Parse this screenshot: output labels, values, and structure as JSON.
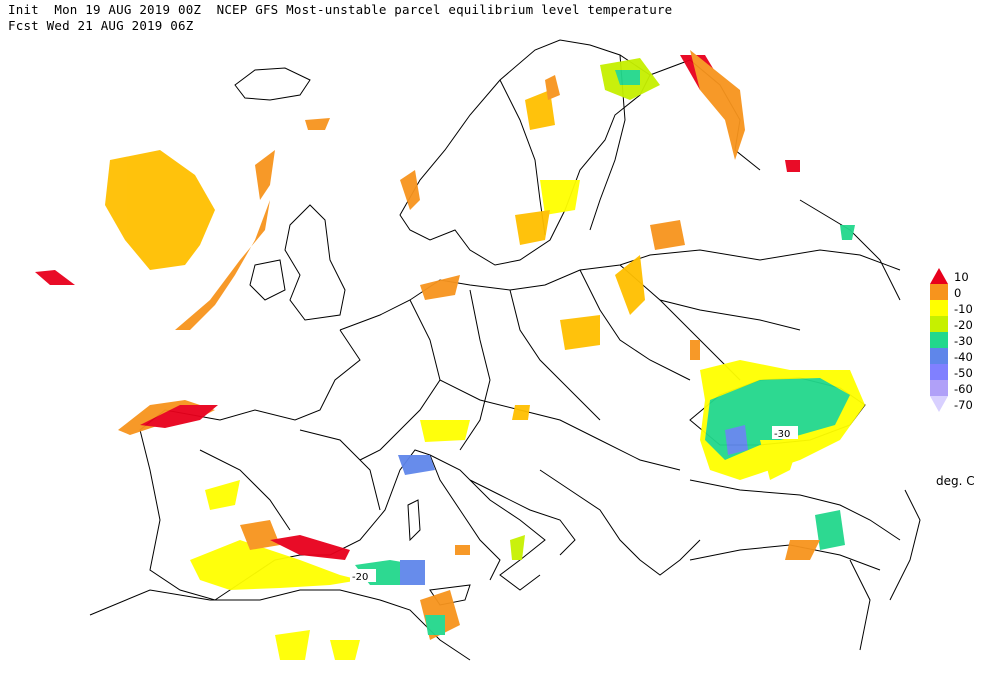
{
  "header": {
    "line1": "Init  Mon 19 AUG 2019 00Z  NCEP GFS Most-unstable parcel equilibrium level temperature",
    "line2": "Fcst Wed 21 AUG 2019 06Z"
  },
  "legend": {
    "units": "deg. C",
    "entries": [
      {
        "label": "10",
        "color": "#e8001c"
      },
      {
        "label": "0",
        "color": "#f7941d"
      },
      {
        "label": "-10",
        "color": "#ffff00"
      },
      {
        "label": "-20",
        "color": "#c6f000"
      },
      {
        "label": "-30",
        "color": "#22d88c"
      },
      {
        "label": "-40",
        "color": "#5f86ea"
      },
      {
        "label": "-50",
        "color": "#8080ff"
      },
      {
        "label": "-60",
        "color": "#b0a0f8"
      },
      {
        "label": "-70",
        "color": "#d8d0ff"
      }
    ]
  },
  "contour_labels": [
    "-30",
    "-20"
  ]
}
